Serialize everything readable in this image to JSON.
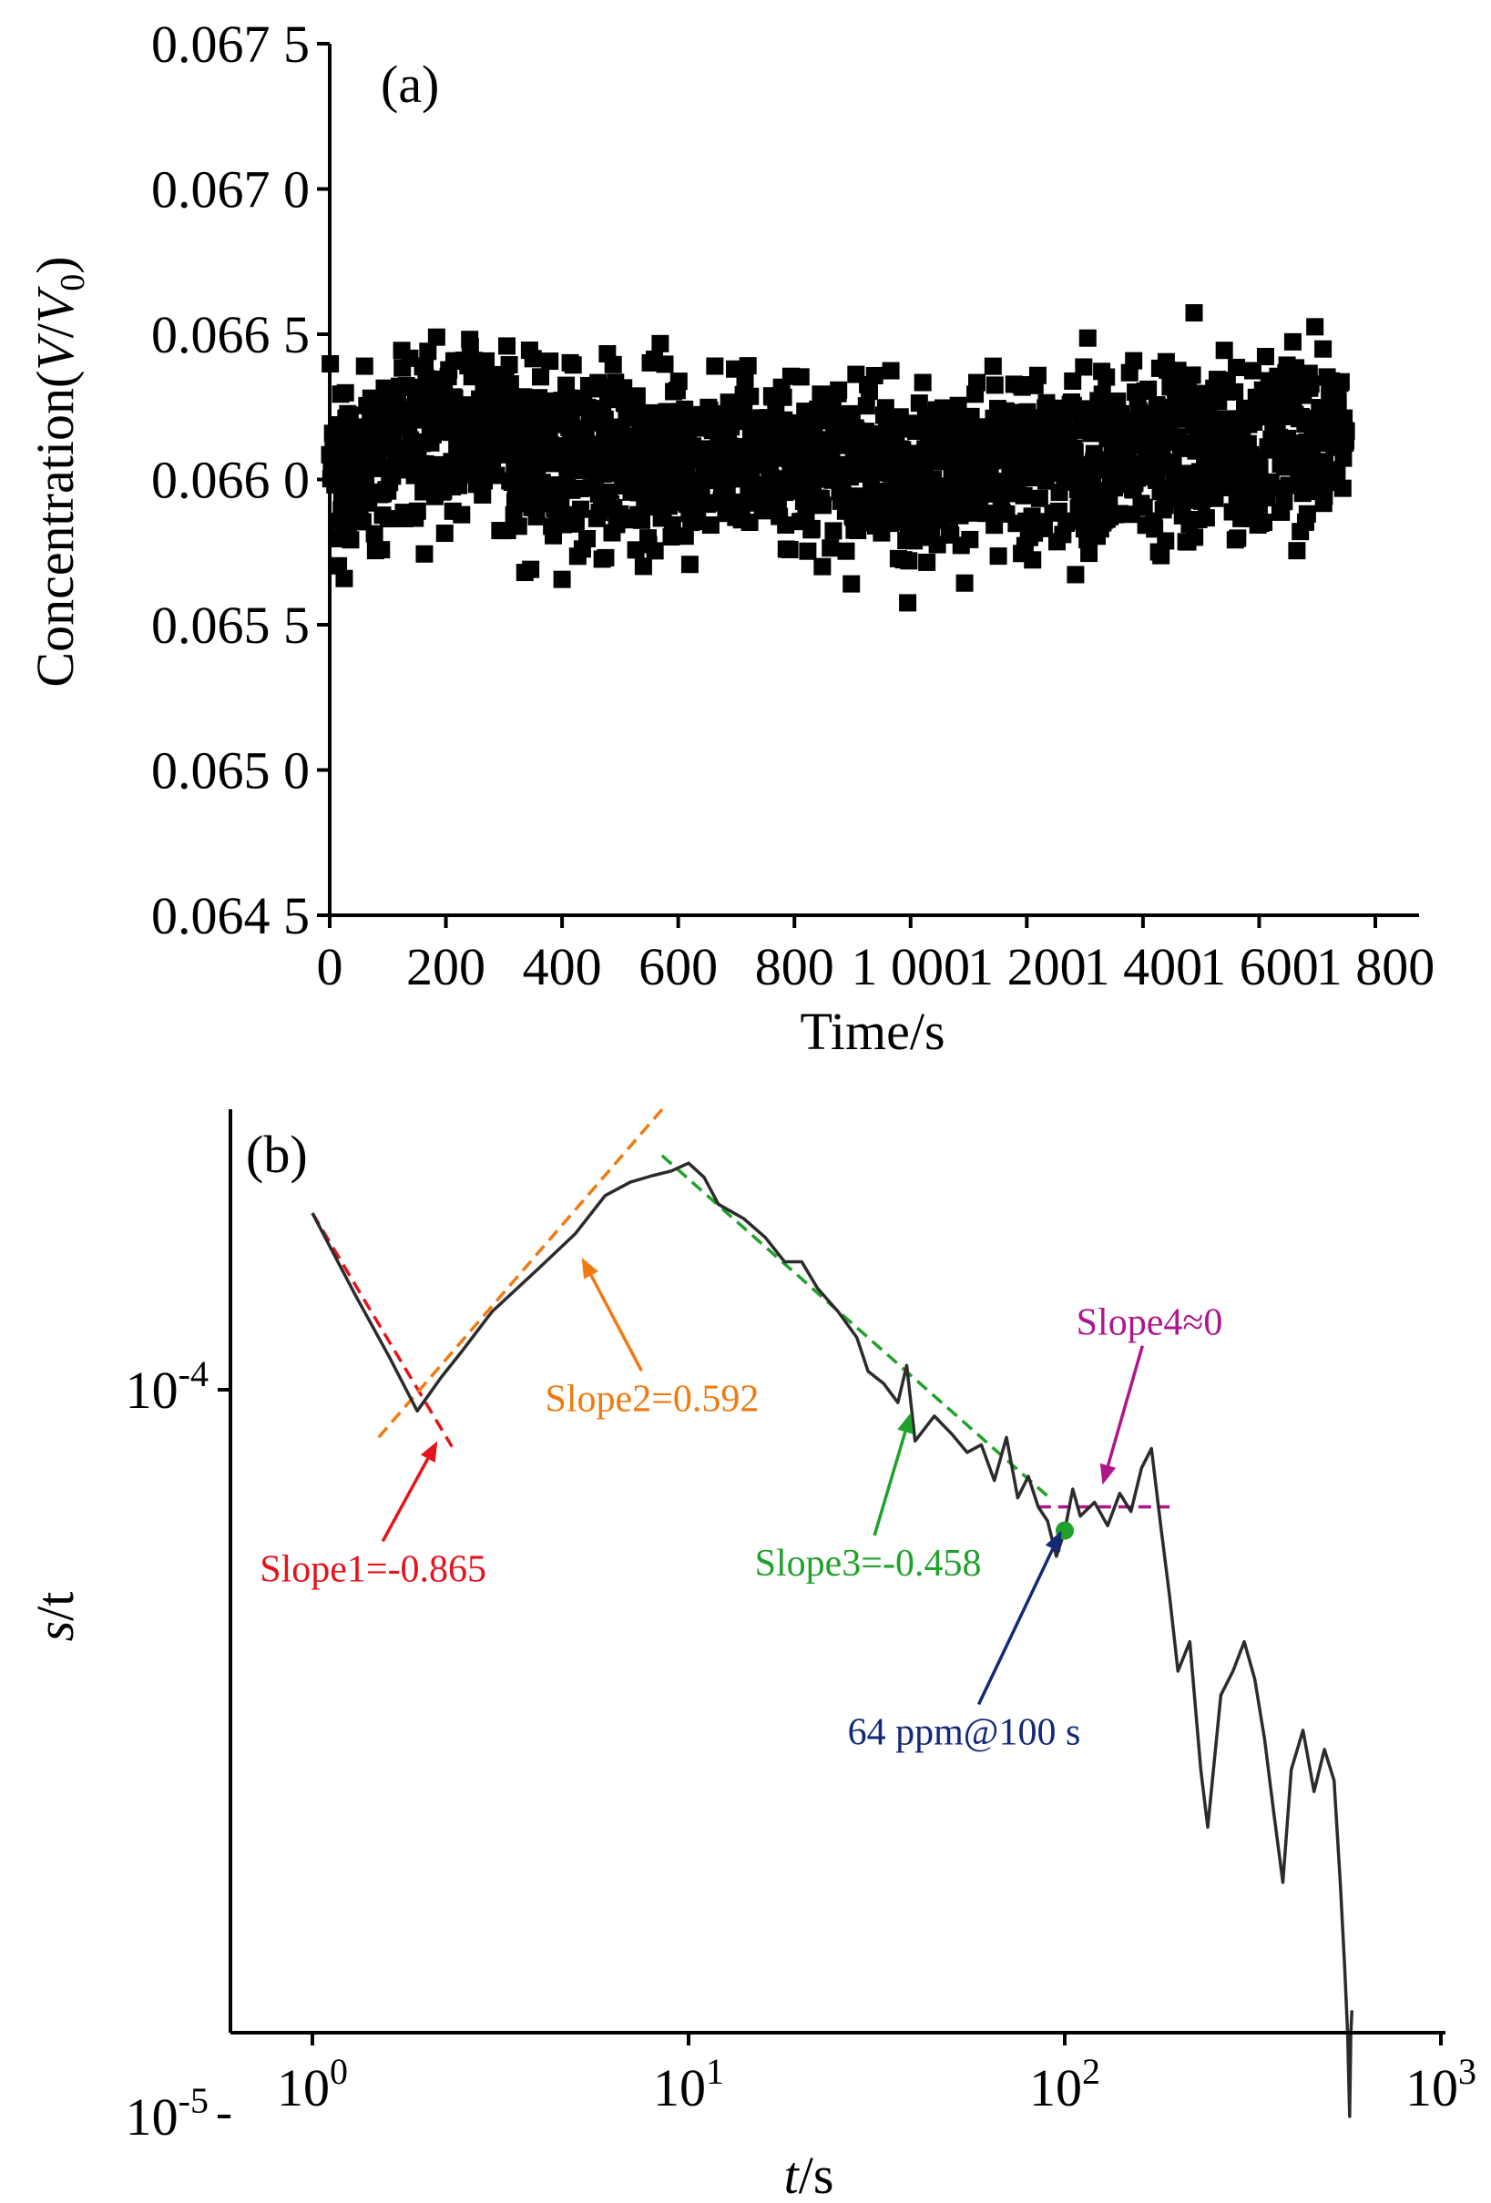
{
  "chart_data": [
    {
      "type": "scatter",
      "panel_label": "(a)",
      "xlabel": "Time/s",
      "ylabel": "Concentration(V/V0)",
      "ylabel_parts": {
        "prefix": "Concentration(",
        "v": "V",
        "slash": "/",
        "v0": "V",
        "sub": "0",
        "suffix": ")"
      },
      "xlim": [
        0,
        1800
      ],
      "ylim": [
        0.0645,
        0.0675
      ],
      "x_ticks": [
        0,
        200,
        400,
        600,
        800,
        1000,
        1200,
        1400,
        1600,
        1800
      ],
      "x_tick_labels": [
        "0",
        "200",
        "400",
        "600",
        "800",
        "1 000",
        "1 200",
        "1 400",
        "1 600",
        "1 800"
      ],
      "y_ticks": [
        0.0645,
        0.065,
        0.0655,
        0.066,
        0.0665,
        0.067,
        0.0675
      ],
      "y_tick_labels": [
        "0.064 5",
        "0.065 0",
        "0.065 5",
        "0.066 0",
        "0.066 5",
        "0.067 0",
        "0.067 5"
      ],
      "grid": false,
      "marker": "filled square",
      "series": [
        {
          "x_start": 0,
          "x_end": 1750,
          "x_step": 1,
          "values_summary": "about 1750 points scattered mostly between 0.0656 and 0.0666, mean about 0.0661",
          "envelope": [
            {
              "x": 0,
              "lower": 0.06555,
              "upper": 0.0665
            },
            {
              "x": 200,
              "lower": 0.0657,
              "upper": 0.0667
            },
            {
              "x": 400,
              "lower": 0.06555,
              "upper": 0.0666
            },
            {
              "x": 600,
              "lower": 0.0656,
              "upper": 0.06655
            },
            {
              "x": 800,
              "lower": 0.0656,
              "upper": 0.06655
            },
            {
              "x": 1000,
              "lower": 0.06555,
              "upper": 0.0665
            },
            {
              "x": 1200,
              "lower": 0.06555,
              "upper": 0.06655
            },
            {
              "x": 1400,
              "lower": 0.06555,
              "upper": 0.06665
            },
            {
              "x": 1600,
              "lower": 0.0656,
              "upper": 0.06665
            },
            {
              "x": 1750,
              "lower": 0.0657,
              "upper": 0.06665
            }
          ]
        }
      ]
    },
    {
      "type": "line",
      "panel_label": "(b)",
      "xlabel": "t/s",
      "xlabel_parts": {
        "var": "t",
        "unit": "/s"
      },
      "ylabel": "s/t",
      "ylabel_parts": {
        "var": "s",
        "unit": "/t"
      },
      "log_x": true,
      "log_y": true,
      "xlim": [
        0.6,
        1000
      ],
      "ylim": [
        8e-06,
        0.00027
      ],
      "x_ticks": [
        1,
        10,
        100,
        1000
      ],
      "x_tick_labels": [
        {
          "base": "10",
          "exp": "0"
        },
        {
          "base": "10",
          "exp": "1"
        },
        {
          "base": "10",
          "exp": "2"
        },
        {
          "base": "10",
          "exp": "3"
        }
      ],
      "y_ticks": [
        1e-05,
        0.0001
      ],
      "y_tick_labels": [
        {
          "base": "10",
          "exp": "-5"
        },
        {
          "base": "10",
          "exp": "-4"
        }
      ],
      "grid": false,
      "series": [
        {
          "color": "#2b2b2b",
          "points": [
            [
              1.0,
              0.000175
            ],
            [
              1.3,
              0.000135
            ],
            [
              1.6,
              0.000111
            ],
            [
              1.9,
              9.35e-05
            ],
            [
              2.2,
              0.000104
            ],
            [
              2.5,
              0.000113
            ],
            [
              3.0,
              0.000128
            ],
            [
              4.0,
              0.000147
            ],
            [
              5.0,
              0.000164
            ],
            [
              6.0,
              0.000185
            ],
            [
              7.0,
              0.000193
            ],
            [
              8.0,
              0.000197
            ],
            [
              9.0,
              0.0002
            ],
            [
              10.0,
              0.000205
            ],
            [
              11.0,
              0.000196
            ],
            [
              12.0,
              0.00018
            ],
            [
              14.0,
              0.000172
            ],
            [
              16.0,
              0.000162
            ],
            [
              18.0,
              0.00015
            ],
            [
              20.0,
              0.00015
            ],
            [
              22.0,
              0.000138
            ],
            [
              25.0,
              0.000128
            ],
            [
              28.0,
              0.000118
            ],
            [
              30.0,
              0.000106
            ],
            [
              33.0,
              0.000102
            ],
            [
              36.0,
              9.6e-05
            ],
            [
              38.0,
              0.000108
            ],
            [
              40.0,
              8.5e-05
            ],
            [
              45.0,
              9.2e-05
            ],
            [
              50.0,
              8.7e-05
            ],
            [
              55.0,
              8.2e-05
            ],
            [
              60.0,
              8.4e-05
            ],
            [
              65.0,
              7.5e-05
            ],
            [
              70.0,
              8.6e-05
            ],
            [
              75.0,
              7.1e-05
            ],
            [
              80.0,
              7.6e-05
            ],
            [
              85.0,
              6.9e-05
            ],
            [
              90.0,
              6.6e-05
            ],
            [
              95.0,
              5.9e-05
            ],
            [
              100.0,
              6.4e-05
            ],
            [
              105.0,
              7.3e-05
            ],
            [
              110.0,
              6.7e-05
            ],
            [
              120.0,
              7e-05
            ],
            [
              130.0,
              6.5e-05
            ],
            [
              140.0,
              7.2e-05
            ],
            [
              150.0,
              6.8e-05
            ],
            [
              160.0,
              7.8e-05
            ],
            [
              170.0,
              8.3e-05
            ],
            [
              180.0,
              6.5e-05
            ],
            [
              190.0,
              5.2e-05
            ],
            [
              200.0,
              4.1e-05
            ],
            [
              215.0,
              4.5e-05
            ],
            [
              230.0,
              3e-05
            ],
            [
              240.0,
              2.5e-05
            ],
            [
              260.0,
              3.8e-05
            ],
            [
              280.0,
              4.1e-05
            ],
            [
              300.0,
              4.5e-05
            ],
            [
              320.0,
              4e-05
            ],
            [
              340.0,
              3.3e-05
            ],
            [
              360.0,
              2.6e-05
            ],
            [
              380.0,
              2.1e-05
            ],
            [
              400.0,
              3e-05
            ],
            [
              430.0,
              3.4e-05
            ],
            [
              460.0,
              2.8e-05
            ],
            [
              490.0,
              3.2e-05
            ],
            [
              520.0,
              2.9e-05
            ],
            [
              540.0,
              2.1e-05
            ],
            [
              555.0,
              1.6e-05
            ],
            [
              565.0,
              1.3e-05
            ],
            [
              572.0,
              1e-05
            ],
            [
              576.0,
              1.3e-05
            ],
            [
              580.0,
              1.4e-05
            ]
          ]
        }
      ],
      "fit_lines": [
        {
          "label": "Slope1=-0.865",
          "color": "#e3141b",
          "from": [
            1.0,
            0.000175
          ],
          "to": [
            2.35,
            8.35e-05
          ]
        },
        {
          "label": "Slope2=0.592",
          "color": "#f07a10",
          "from": [
            1.5,
            8.6e-05
          ],
          "to": [
            8.5,
            0.000243
          ]
        },
        {
          "label": "Slope3=-0.458",
          "color": "#1fa12a",
          "from": [
            8.5,
            0.00021
          ],
          "to": [
            90.0,
            7.14e-05
          ]
        },
        {
          "label": "Slope4≈0",
          "color": "#b0168c",
          "from": [
            85.0,
            6.9e-05
          ],
          "to": [
            190.0,
            6.9e-05
          ]
        }
      ],
      "marker_point": {
        "label": "64 ppm@100 s",
        "x": 100,
        "y": 6.4e-05,
        "color": "#1fa12a"
      },
      "annotations": [
        {
          "text": "Slope1=-0.865",
          "color": "#e3141b",
          "text_at": [
            1.45,
            5.45e-05
          ],
          "arrow_to": [
            2.15,
            8.5e-05
          ]
        },
        {
          "text": "Slope2=0.592",
          "color": "#f07a10",
          "text_at": [
            8.0,
            9.35e-05
          ],
          "arrow_to": [
            5.2,
            0.000152
          ]
        },
        {
          "text": "Slope3=-0.458",
          "color": "#1fa12a",
          "text_at": [
            30.0,
            5.55e-05
          ],
          "arrow_to": [
            39.0,
            9.3e-05
          ]
        },
        {
          "text": "Slope4≈0",
          "color": "#b0168c",
          "text_at": [
            168.0,
            0.000119
          ],
          "arrow_to": [
            126.0,
            7.4e-05
          ]
        },
        {
          "text": "64 ppm@100 s",
          "color": "#14287a",
          "text_at": [
            54.0,
            3.25e-05
          ],
          "arrow_to": [
            98.0,
            6.4e-05
          ]
        }
      ]
    }
  ]
}
